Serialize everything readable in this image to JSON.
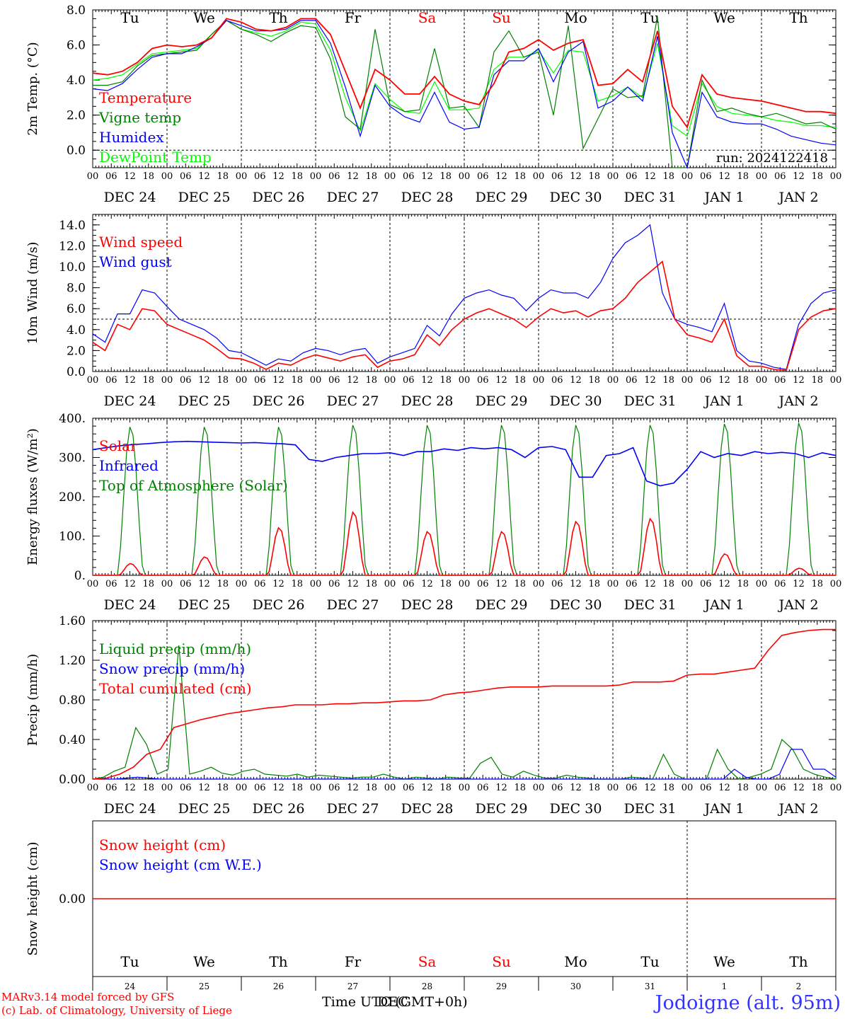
{
  "location_title": "Jodoigne (alt. 95m)",
  "run_label": "run: 2024122418",
  "footer_model": "MARv3.14 model forced by GFS",
  "footer_copyright": "(c) Lab. of Climatology, University of Liege",
  "x_axis_label": "Time UTC (GMT+0h)",
  "x_axis_label_overlay": "DEC",
  "day_names": [
    "Tu",
    "We",
    "Th",
    "Fr",
    "Sa",
    "Su",
    "Mo",
    "Tu",
    "We",
    "Th"
  ],
  "weekend_color": "#ff0000",
  "day_dates": [
    "DEC 24",
    "DEC 25",
    "DEC 26",
    "DEC 27",
    "DEC 28",
    "DEC 29",
    "DEC 30",
    "DEC 31",
    "JAN  1",
    "JAN  2"
  ],
  "day_numbers": [
    "24",
    "25",
    "26",
    "27",
    "28",
    "29",
    "30",
    "31",
    "1",
    "2"
  ],
  "hour_labels": [
    "00",
    "06",
    "12",
    "18"
  ],
  "chart_data": [
    {
      "type": "line",
      "ylabel": "2m Temp. (°C)",
      "ylim": [
        -1,
        8
      ],
      "yticks": [
        "0.0",
        "2.0",
        "4.0",
        "6.0",
        "8.0"
      ],
      "reference_line": 0,
      "x": "hours since DEC 24 00 UTC, step 3h (0-240)",
      "series": [
        {
          "name": "Temperature",
          "color": "#ff0000",
          "values": [
            4.4,
            4.3,
            4.5,
            5,
            5.8,
            6,
            5.9,
            6,
            6.4,
            7.5,
            7.3,
            6.9,
            6.8,
            7,
            7.5,
            7.5,
            6.6,
            4.5,
            2.4,
            4.6,
            4,
            3.2,
            3.2,
            4.2,
            3.2,
            2.8,
            2.6,
            3.8,
            5.6,
            5.8,
            6.3,
            5.7,
            6.1,
            6.3,
            3.7,
            3.8,
            4.6,
            3.9,
            6.8,
            2.5,
            1.3,
            4.3,
            3.2,
            3,
            2.9,
            2.8,
            2.6,
            2.4,
            2.2,
            2.2,
            2.1
          ]
        },
        {
          "name": "Vigne temp",
          "color": "#008000",
          "values": [
            3.7,
            3.7,
            3.9,
            4.8,
            5.4,
            5.5,
            5.6,
            5.7,
            6.6,
            7.4,
            6.9,
            6.6,
            6.2,
            6.7,
            7.1,
            7,
            5.2,
            1.9,
            1.2,
            6.9,
            2.6,
            2.2,
            2.3,
            5.8,
            2.4,
            2.5,
            1.3,
            5.6,
            6.8,
            5.3,
            5.6,
            2,
            7.1,
            0.1,
            1.8,
            3.5,
            3,
            3.1,
            7.6,
            -1,
            -1,
            4,
            2.2,
            2.4,
            2.1,
            1.9,
            2.1,
            1.8,
            1.5,
            1.6,
            1.2
          ]
        },
        {
          "name": "Humidex",
          "color": "#0000ff",
          "values": [
            3.5,
            3.4,
            3.8,
            4.6,
            5.3,
            5.5,
            5.5,
            5.9,
            6.4,
            7.4,
            7.1,
            6.8,
            6.8,
            6.9,
            7.4,
            7.4,
            6.1,
            3.6,
            0.8,
            3.7,
            2.5,
            1.9,
            1.6,
            3.3,
            1.6,
            1.2,
            1.3,
            4.3,
            5.1,
            5.1,
            5.8,
            3.9,
            5.6,
            6.2,
            2.4,
            2.8,
            3.6,
            2.8,
            6.5,
            1,
            -1,
            3.3,
            1.9,
            1.6,
            1.5,
            1.5,
            1.2,
            0.8,
            0.6,
            0.4,
            0.3
          ]
        },
        {
          "name": "DewPoint Temp",
          "color": "#00ff00",
          "values": [
            4,
            4.1,
            4.3,
            4.9,
            5.5,
            5.6,
            5.7,
            5.8,
            6.6,
            7.4,
            6.9,
            6.7,
            6.5,
            6.8,
            7.3,
            7.2,
            5.7,
            3,
            1.1,
            3.8,
            2.9,
            2.2,
            2.1,
            3.9,
            2.3,
            2.3,
            2.4,
            4.6,
            5.3,
            5.3,
            5.7,
            4.4,
            5.7,
            5.6,
            2.8,
            3.1,
            3.6,
            3,
            6.1,
            1.4,
            0.8,
            3.8,
            2.5,
            2.1,
            2,
            1.9,
            1.7,
            1.6,
            1.4,
            1.4,
            1.3
          ]
        }
      ]
    },
    {
      "type": "line",
      "ylabel": "10m Wind (m/s)",
      "ylim": [
        0,
        15
      ],
      "yticks": [
        "0.0",
        "2.0",
        "4.0",
        "6.0",
        "8.0",
        "10.0",
        "12.0",
        "14.0"
      ],
      "reference_line": 5,
      "x": "hours since DEC 24 00 UTC, step 3h (0-240)",
      "series": [
        {
          "name": "Wind speed",
          "color": "#ff0000",
          "values": [
            2.8,
            2,
            4.5,
            4,
            6,
            5.8,
            4.5,
            4,
            3.5,
            3,
            2.2,
            1.3,
            1.2,
            0.8,
            0.2,
            0.8,
            0.6,
            1.2,
            1.6,
            1.3,
            1,
            1.4,
            1.6,
            0.4,
            1,
            1.2,
            1.6,
            3.5,
            2.5,
            4,
            5,
            5.6,
            6,
            5.5,
            5,
            4.2,
            5.2,
            6,
            5.6,
            5.8,
            5.2,
            5.8,
            6,
            7,
            8.5,
            9.5,
            10.5,
            5,
            3.5,
            3.2,
            2.8,
            5,
            1.5,
            0.5,
            0.5,
            0.2,
            0.1,
            4,
            5.2,
            5.8,
            6
          ]
        },
        {
          "name": "Wind gust",
          "color": "#0000ff",
          "values": [
            3.6,
            2.8,
            5.5,
            5.5,
            7.8,
            7.5,
            6.2,
            5,
            4.5,
            4,
            3.2,
            2,
            1.8,
            1.2,
            0.6,
            1.2,
            1,
            1.8,
            2.2,
            2,
            1.6,
            2,
            2.2,
            0.8,
            1.4,
            1.8,
            2.2,
            4.4,
            3.4,
            5.5,
            7,
            7.5,
            7.8,
            7.3,
            7,
            5.8,
            7,
            7.8,
            7.5,
            7.5,
            7,
            8.5,
            10.8,
            12.3,
            13,
            14,
            7.5,
            5,
            4.5,
            4.2,
            3.8,
            6.5,
            2,
            1,
            0.8,
            0.4,
            0.2,
            4.5,
            6.5,
            7.5,
            7.8
          ]
        }
      ]
    },
    {
      "type": "line",
      "ylabel": "Energy fluxes (W/m²)",
      "ylim": [
        0,
        400
      ],
      "yticks": [
        "0.",
        "100.",
        "200.",
        "300.",
        "400."
      ],
      "x": "hours since DEC 24 00 UTC, step 3h (0-240)",
      "series": [
        {
          "name": "Solar",
          "color": "#ff0000",
          "peaks": [
            30,
            47,
            122,
            162,
            112,
            112,
            138,
            145,
            55,
            18
          ]
        },
        {
          "name": "Infrared",
          "color": "#0000ff",
          "values": [
            320,
            325,
            330,
            333,
            335,
            338,
            340,
            341,
            340,
            339,
            338,
            337,
            338,
            336,
            335,
            332,
            295,
            290,
            300,
            305,
            310,
            310,
            312,
            305,
            315,
            315,
            322,
            318,
            325,
            322,
            325,
            320,
            300,
            325,
            328,
            320,
            250,
            250,
            305,
            310,
            325,
            240,
            228,
            235,
            270,
            315,
            300,
            310,
            305,
            315,
            310,
            313,
            310,
            300,
            312,
            305
          ]
        },
        {
          "name": "Top of Atmosphere (Solar)",
          "color": "#008000",
          "peaks": [
            380,
            380,
            380,
            385,
            385,
            385,
            385,
            385,
            388,
            390
          ]
        }
      ]
    },
    {
      "type": "line",
      "ylabel": "Precip (mm/h)",
      "ylim": [
        0,
        1.6
      ],
      "yticks": [
        "0.00",
        "0.40",
        "0.80",
        "1.20",
        "1.60"
      ],
      "x": "hours since DEC 24 00 UTC, step 3h (0-240)",
      "series": [
        {
          "name": "Liquid precip (mm/h)",
          "color": "#008000",
          "values": [
            0,
            0.02,
            0.08,
            0.12,
            0.52,
            0.35,
            0.05,
            0.1,
            1.35,
            0.05,
            0.08,
            0.12,
            0.06,
            0.04,
            0.08,
            0.1,
            0.05,
            0.04,
            0.03,
            0.05,
            0.02,
            0.04,
            0.03,
            0.02,
            0.01,
            0.02,
            0.02,
            0.05,
            0.02,
            0,
            0.02,
            0.01,
            0,
            0.02,
            0.01,
            0.01,
            0.16,
            0.22,
            0.05,
            0.02,
            0.08,
            0.04,
            0.01,
            0.01,
            0.04,
            0.02,
            0.01,
            0,
            0,
            0,
            0.02,
            0.01,
            0,
            0.25,
            0.05,
            0,
            0,
            0,
            0.3,
            0.1,
            0,
            0.02,
            0.05,
            0.1,
            0.4,
            0.3,
            0.1,
            0.05,
            0.02,
            0
          ]
        },
        {
          "name": "Snow precip (mm/h)",
          "color": "#0000ff",
          "values": [
            0,
            0,
            0,
            0.01,
            0.02,
            0.01,
            0,
            0,
            0,
            0,
            0,
            0,
            0,
            0,
            0,
            0,
            0,
            0,
            0,
            0,
            0,
            0,
            0,
            0,
            0,
            0,
            0,
            0,
            0,
            0,
            0,
            0,
            0,
            0,
            0,
            0,
            0,
            0,
            0,
            0,
            0,
            0,
            0,
            0,
            0,
            0,
            0,
            0,
            0,
            0,
            0,
            0,
            0,
            0,
            0,
            0,
            0,
            0.1,
            0.02,
            0,
            0,
            0.05,
            0.3,
            0.3,
            0.1,
            0.1,
            0.02
          ]
        },
        {
          "name": "Total cumulated (cm)",
          "color": "#ff0000",
          "values": [
            0,
            0.01,
            0.05,
            0.12,
            0.25,
            0.3,
            0.52,
            0.56,
            0.6,
            0.63,
            0.66,
            0.68,
            0.7,
            0.72,
            0.73,
            0.75,
            0.75,
            0.75,
            0.76,
            0.76,
            0.77,
            0.77,
            0.78,
            0.79,
            0.79,
            0.8,
            0.85,
            0.87,
            0.88,
            0.9,
            0.92,
            0.93,
            0.93,
            0.93,
            0.94,
            0.94,
            0.94,
            0.94,
            0.94,
            0.95,
            0.98,
            0.98,
            0.98,
            0.99,
            1.05,
            1.06,
            1.06,
            1.08,
            1.1,
            1.12,
            1.3,
            1.45,
            1.48,
            1.5,
            1.51,
            1.51
          ]
        }
      ]
    },
    {
      "type": "line",
      "ylabel": "Snow height (cm)",
      "yticks": [
        "0.00"
      ],
      "series": [
        {
          "name": "Snow height (cm)",
          "color": "#ff0000",
          "values": [
            0,
            0
          ]
        },
        {
          "name": "Snow height (cm W.E.)",
          "color": "#0000ff",
          "values": [
            0,
            0
          ]
        }
      ]
    }
  ]
}
